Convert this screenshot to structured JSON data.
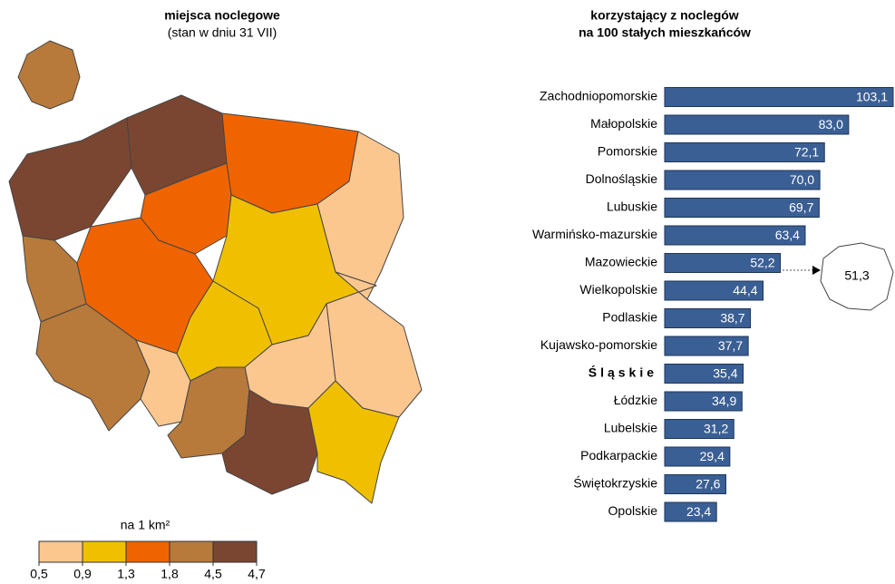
{
  "chart_data": [
    {
      "type": "choropleth",
      "title": "miejsca noclegowe",
      "subtitle": "(stan w dniu 31 VII)",
      "legend_title": "na 1 km²",
      "bins": [
        {
          "value": 0.5,
          "label": "0,5"
        },
        {
          "value": 0.9,
          "label": "0,9"
        },
        {
          "value": 1.3,
          "label": "1,3"
        },
        {
          "value": 1.8,
          "label": "1,8"
        },
        {
          "value": 4.5,
          "label": "4,5"
        },
        {
          "value": 4.7,
          "label": "4,7"
        }
      ],
      "colors": [
        "#fbc78f",
        "#f0c000",
        "#f06400",
        "#b77a3b",
        "#7a4632"
      ]
    },
    {
      "type": "hbar",
      "title": "korzystający z noclegów",
      "subtitle": "na 100 stałych mieszkańców",
      "categories": [
        "Zachodniopomorskie",
        "Małopolskie",
        "Pomorskie",
        "Dolnośląskie",
        "Lubuskie",
        "Warmińsko-mazurskie",
        "Mazowieckie",
        "Wielkopolskie",
        "Podlaskie",
        "Kujawsko-pomorskie",
        "Śląskie",
        "Łódzkie",
        "Lubelskie",
        "Podkarpackie",
        "Świętokrzyskie",
        "Opolskie"
      ],
      "values": [
        103.1,
        83.0,
        72.1,
        70.0,
        69.7,
        63.4,
        52.2,
        44.4,
        38.7,
        37.7,
        35.4,
        34.9,
        31.2,
        29.4,
        27.6,
        23.4
      ],
      "value_labels": [
        "103,1",
        "83,0",
        "72,1",
        "70,0",
        "69,7",
        "63,4",
        "52,2",
        "44,4",
        "38,7",
        "37,7",
        "35,4",
        "34,9",
        "31,2",
        "29,4",
        "27,6",
        "23,4"
      ],
      "highlight": "Śląskie",
      "annotation": "51,3",
      "color": "#3a5f94"
    }
  ]
}
